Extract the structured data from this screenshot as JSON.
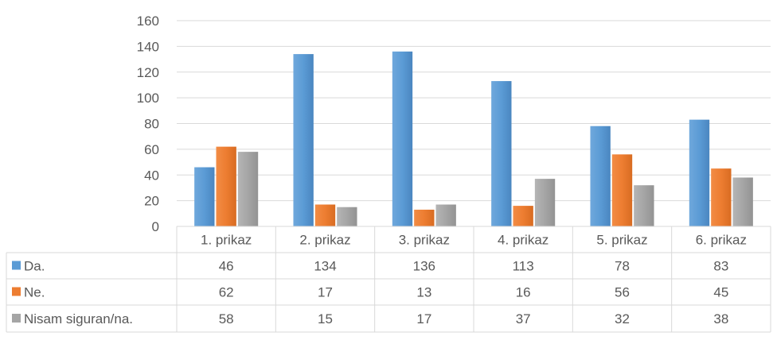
{
  "chart_data": {
    "type": "bar",
    "categories": [
      "1. prikaz",
      "2. prikaz",
      "3. prikaz",
      "4. prikaz",
      "5. prikaz",
      "6. prikaz"
    ],
    "series": [
      {
        "name": "Da.",
        "color": "#5B9BD5",
        "values": [
          46,
          134,
          136,
          113,
          78,
          83
        ]
      },
      {
        "name": "Ne.",
        "color": "#ED7D31",
        "values": [
          62,
          17,
          13,
          16,
          56,
          45
        ]
      },
      {
        "name": "Nisam siguran/na.",
        "color": "#A5A5A5",
        "values": [
          58,
          15,
          17,
          37,
          32,
          38
        ]
      }
    ],
    "ylim": [
      0,
      160
    ],
    "yticks": [
      0,
      20,
      40,
      60,
      80,
      100,
      120,
      140,
      160
    ],
    "grid": true,
    "data_table": true
  }
}
